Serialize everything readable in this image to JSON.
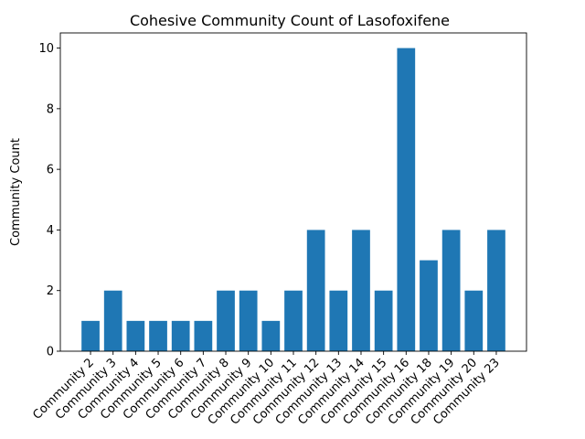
{
  "chart_data": {
    "type": "bar",
    "title": "Cohesive Community Count of Lasofoxifene",
    "xlabel": "",
    "ylabel": "Community Count",
    "categories": [
      "Community 2",
      "Community 3",
      "Community 4",
      "Community 5",
      "Community 6",
      "Community 7",
      "Community 8",
      "Community 9",
      "Community 10",
      "Community 11",
      "Community 12",
      "Community 13",
      "Community 14",
      "Community 15",
      "Community 16",
      "Community 18",
      "Community 19",
      "Community 20",
      "Community 23"
    ],
    "values": [
      1,
      2,
      1,
      1,
      1,
      1,
      2,
      2,
      1,
      2,
      4,
      2,
      4,
      2,
      10,
      3,
      4,
      2,
      4
    ],
    "ylim": [
      0,
      10.5
    ],
    "yticks": [
      0,
      2,
      4,
      6,
      8,
      10
    ],
    "grid": false,
    "bar_color": "#1f77b4"
  }
}
